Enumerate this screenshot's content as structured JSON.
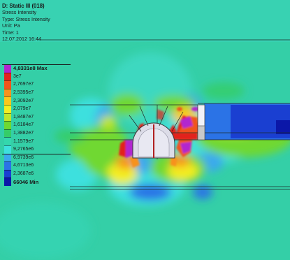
{
  "result_info": {
    "title": "D: Static III (018)",
    "subtitle": "Stress Intensity",
    "type": "Type: Stress Intensity",
    "unit": "Unit: Pa",
    "time": "Time: 1",
    "date": "12.07.2012 16:44"
  },
  "legend": [
    {
      "label": "4,8331e8 Max",
      "color": "#b225cf",
      "emphasis": true
    },
    {
      "label": "3e7",
      "color": "#e2241f"
    },
    {
      "label": "2,7697e7",
      "color": "#f0541c"
    },
    {
      "label": "2,5395e7",
      "color": "#f7921e"
    },
    {
      "label": "2,3092e7",
      "color": "#fbc81d"
    },
    {
      "label": "2,079e7",
      "color": "#f3ee23"
    },
    {
      "label": "1,8487e7",
      "color": "#bfe52b"
    },
    {
      "label": "1,6184e7",
      "color": "#6fd831"
    },
    {
      "label": "1,3882e7",
      "color": "#35cd67"
    },
    {
      "label": "1,1579e7",
      "color": "#34d7ad"
    },
    {
      "label": "9,2765e6",
      "color": "#3ee0de"
    },
    {
      "label": "6,9739e6",
      "color": "#3aa9ee"
    },
    {
      "label": "4,6713e6",
      "color": "#2b73e6"
    },
    {
      "label": "2,3687e6",
      "color": "#1a3fd1"
    },
    {
      "label": "66046 Min",
      "color": "#0b17a8",
      "emphasis": true
    }
  ]
}
